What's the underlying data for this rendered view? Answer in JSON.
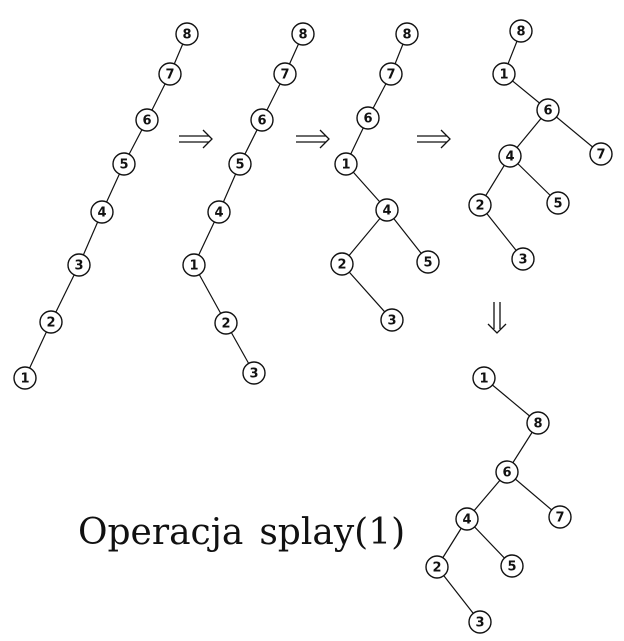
{
  "caption": {
    "operation": "Operacja",
    "name": "splay(1)"
  },
  "trees": [
    {
      "id": "tree-1",
      "nodes": [
        "8",
        "7",
        "6",
        "5",
        "4",
        "3",
        "2",
        "1"
      ],
      "edges": [
        [
          "8",
          "7"
        ],
        [
          "7",
          "6"
        ],
        [
          "6",
          "5"
        ],
        [
          "5",
          "4"
        ],
        [
          "4",
          "3"
        ],
        [
          "3",
          "2"
        ],
        [
          "2",
          "1"
        ]
      ]
    },
    {
      "id": "tree-2",
      "nodes": [
        "8",
        "7",
        "6",
        "5",
        "4",
        "1",
        "2",
        "3"
      ],
      "edges": [
        [
          "8",
          "7"
        ],
        [
          "7",
          "6"
        ],
        [
          "6",
          "5"
        ],
        [
          "5",
          "4"
        ],
        [
          "4",
          "1"
        ],
        [
          "1",
          "2"
        ],
        [
          "2",
          "3"
        ]
      ]
    },
    {
      "id": "tree-3",
      "nodes": [
        "8",
        "7",
        "6",
        "1",
        "4",
        "2",
        "5",
        "3"
      ],
      "edges": [
        [
          "8",
          "7"
        ],
        [
          "7",
          "6"
        ],
        [
          "6",
          "1"
        ],
        [
          "1",
          "4"
        ],
        [
          "4",
          "2"
        ],
        [
          "4",
          "5"
        ],
        [
          "2",
          "3"
        ]
      ]
    },
    {
      "id": "tree-4",
      "nodes": [
        "8",
        "1",
        "6",
        "4",
        "7",
        "2",
        "5",
        "3"
      ],
      "edges": [
        [
          "8",
          "1"
        ],
        [
          "1",
          "6"
        ],
        [
          "6",
          "4"
        ],
        [
          "6",
          "7"
        ],
        [
          "4",
          "2"
        ],
        [
          "4",
          "5"
        ],
        [
          "2",
          "3"
        ]
      ]
    },
    {
      "id": "tree-5",
      "nodes": [
        "1",
        "8",
        "6",
        "4",
        "7",
        "2",
        "5",
        "3"
      ],
      "edges": [
        [
          "1",
          "8"
        ],
        [
          "8",
          "6"
        ],
        [
          "6",
          "4"
        ],
        [
          "6",
          "7"
        ],
        [
          "4",
          "2"
        ],
        [
          "4",
          "5"
        ],
        [
          "2",
          "3"
        ]
      ]
    }
  ],
  "arrows": [
    {
      "from": "tree-1",
      "to": "tree-2",
      "direction": "right"
    },
    {
      "from": "tree-2",
      "to": "tree-3",
      "direction": "right"
    },
    {
      "from": "tree-3",
      "to": "tree-4",
      "direction": "right"
    },
    {
      "from": "tree-4",
      "to": "tree-5",
      "direction": "down"
    }
  ]
}
